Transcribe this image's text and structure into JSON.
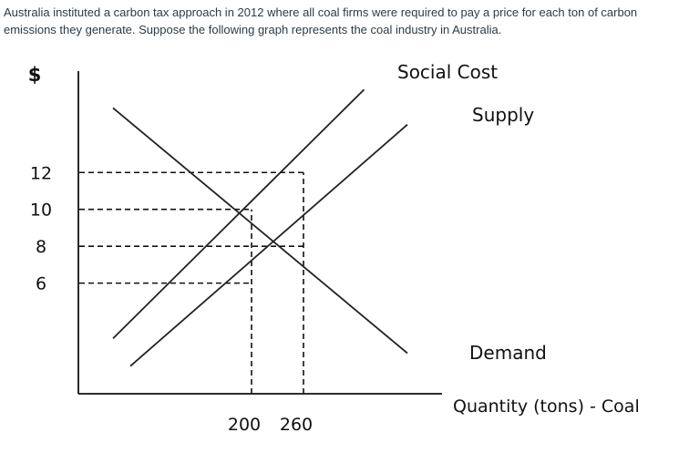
{
  "question_text": "Australia instituted a carbon tax approach in 2012 where all coal firms were required to pay a price for each ton of carbon emissions they generate. Suppose the following graph represents the coal industry in Australia.",
  "chart_data": {
    "type": "line",
    "title": "",
    "ylabel": "$",
    "xlabel": "Quantity (tons) - Coal",
    "y_ticks": [
      12,
      10,
      8,
      6
    ],
    "x_ticks": [
      200,
      260
    ],
    "series": [
      {
        "name": "Social Cost",
        "points": [
          [
            40,
            3
          ],
          [
            330,
            16.5
          ]
        ]
      },
      {
        "name": "Supply",
        "points": [
          [
            60,
            1.5
          ],
          [
            380,
            14.6
          ]
        ]
      },
      {
        "name": "Demand",
        "points": [
          [
            40,
            15.5
          ],
          [
            380,
            2.2
          ]
        ]
      }
    ],
    "reference_lines": [
      {
        "type": "horizontal",
        "y": 12,
        "x_end": 260
      },
      {
        "type": "horizontal",
        "y": 10,
        "x_end": 200
      },
      {
        "type": "horizontal",
        "y": 8,
        "x_end": 260
      },
      {
        "type": "horizontal",
        "y": 6,
        "x_end": 200
      },
      {
        "type": "vertical",
        "x": 200,
        "y_end": 10
      },
      {
        "type": "vertical",
        "x": 260,
        "y_end": 12
      }
    ],
    "xlim": [
      0,
      420
    ],
    "ylim": [
      0,
      17.5
    ],
    "grid": false,
    "legend": "none"
  }
}
